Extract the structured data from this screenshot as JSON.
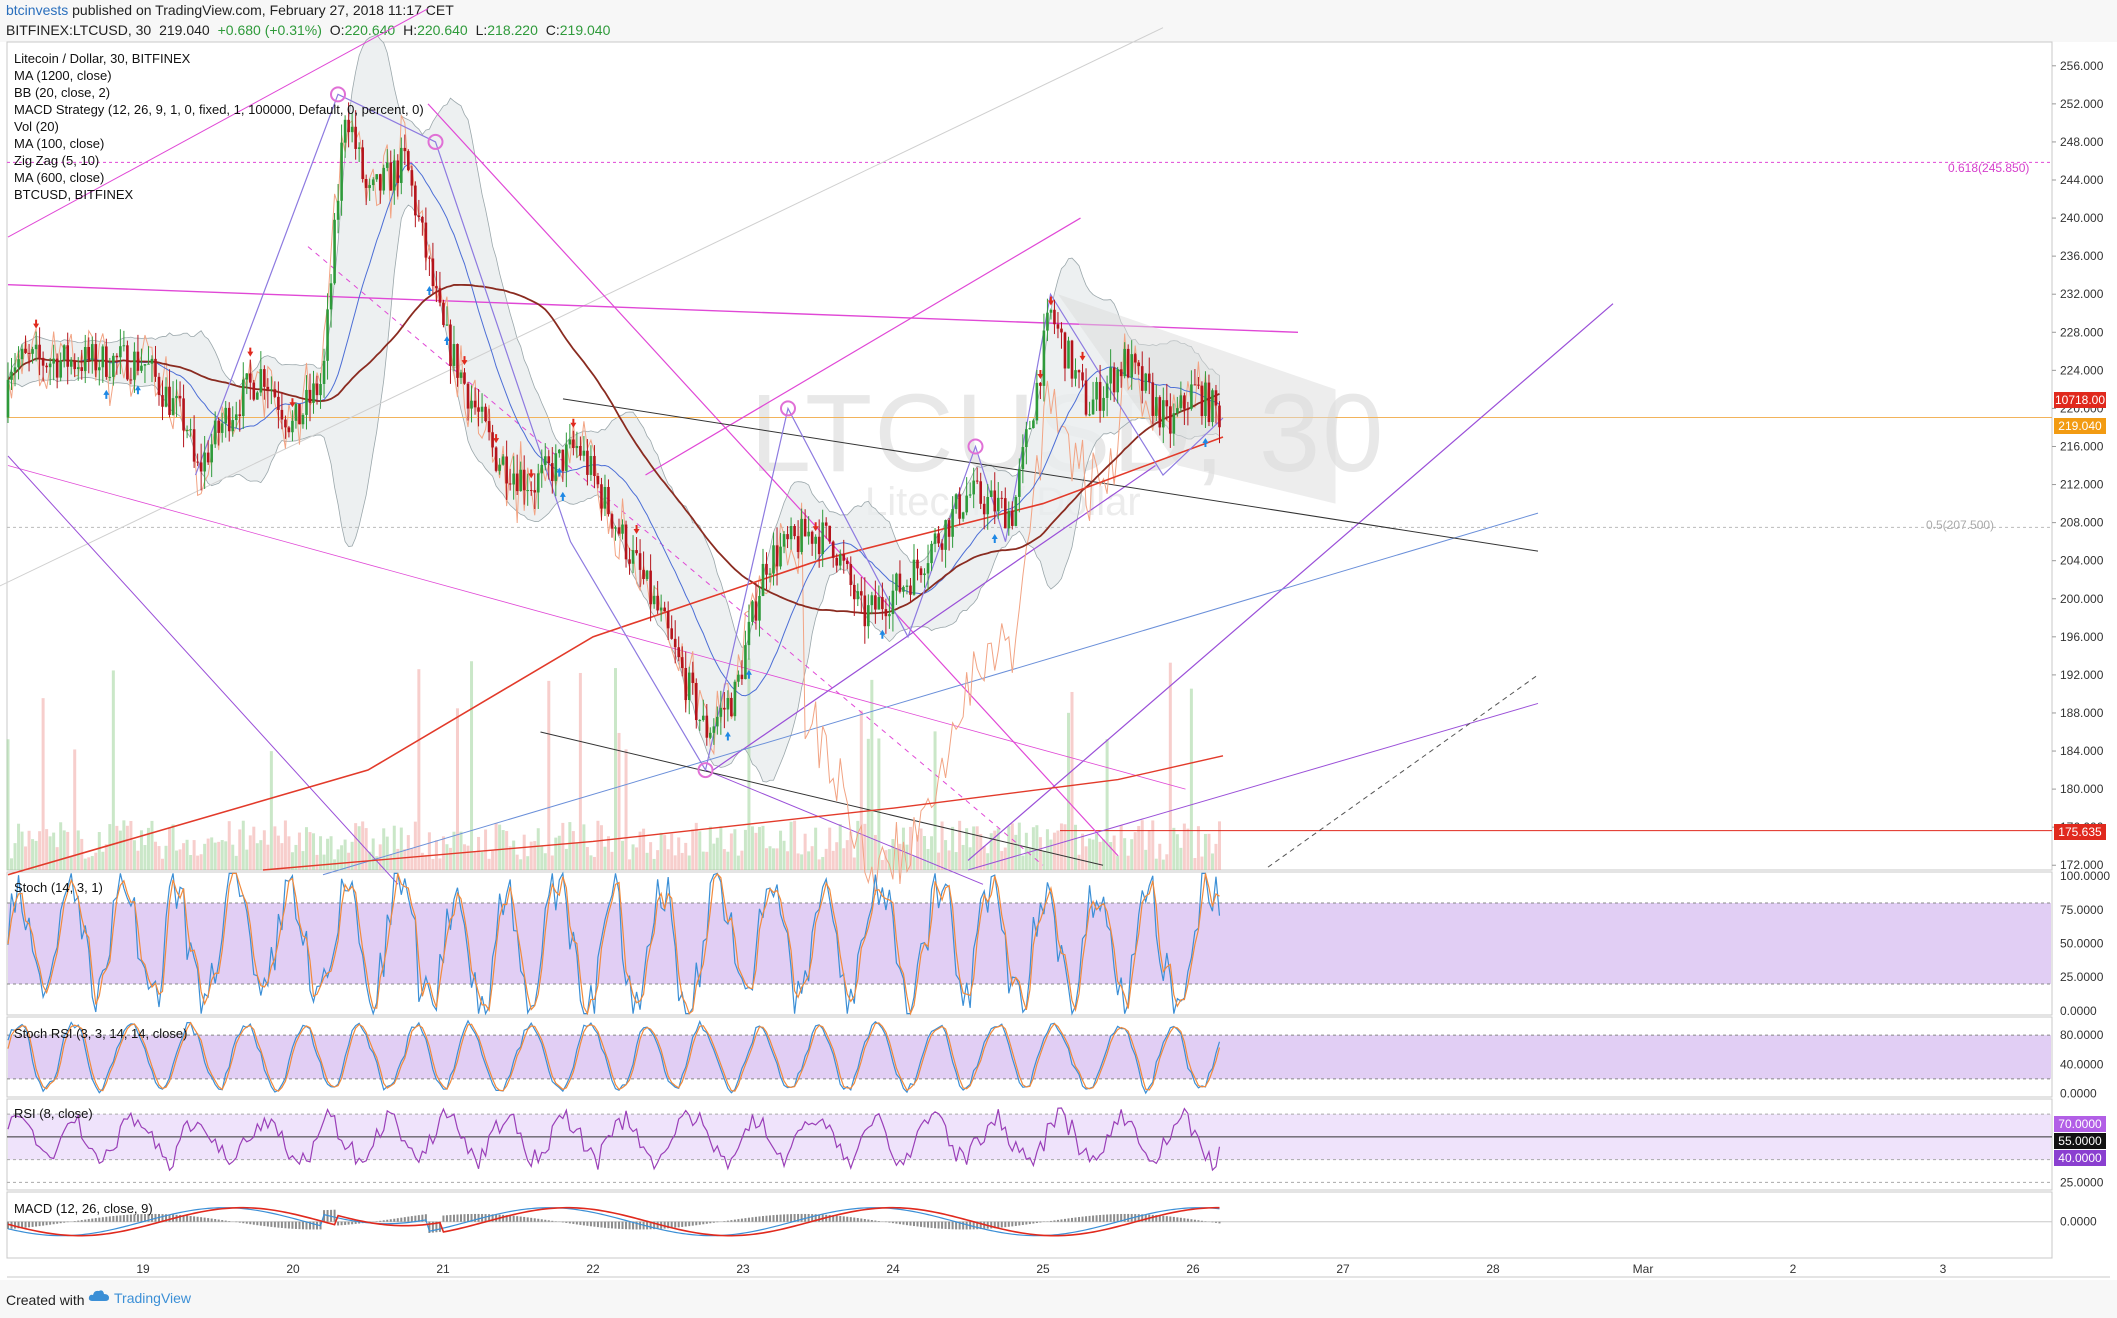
{
  "header": {
    "user": "btcinvests",
    "published_text": "published on TradingView.com, February 27, 2018 11:17 CET",
    "symbol": "BITFINEX:LTCUSD, 30",
    "last": "219.040",
    "change": "+0.680 (+0.31%)",
    "open_label": "O:",
    "open": "220.640",
    "high_label": "H:",
    "high": "220.640",
    "low_label": "L:",
    "low": "218.220",
    "close_label": "C:",
    "close": "219.040"
  },
  "legend": [
    "Litecoin / Dollar, 30, BITFINEX",
    "MA (1200, close)",
    "BB (20, close, 2)",
    "MACD Strategy (12, 26, 9, 1, 0, fixed, 1, 100000, Default, 0, percent, 0)",
    "Vol (20)",
    "MA (100, close)",
    "Zig Zag (5, 10)",
    "MA (600, close)",
    "BTCUSD, BITFINEX"
  ],
  "watermark": {
    "symbol": "LTCUSD, 30",
    "name": "Litecoin / Dollar"
  },
  "panels": {
    "stoch": "Stoch (14, 3, 1)",
    "stoch_rsi": "Stoch RSI (3, 3, 14, 14, close)",
    "rsi": "RSI (8, close)",
    "macd": "MACD (12, 26, close, 9)"
  },
  "price_tags": {
    "btc": "10718.00",
    "last": "219.040",
    "level": "175.635",
    "rsi_upper": "70.0000",
    "rsi_mid": "55.0000",
    "rsi_lower": "40.0000"
  },
  "fib_labels": {
    "fib618": "0.618(245.850)",
    "fib5": "0.5(207.500)"
  },
  "footer": {
    "created_with": "Created with",
    "brand": "TradingView"
  },
  "colors": {
    "up": "#2e9a3a",
    "down": "#b5141c",
    "bb_fill": "#e8ecee",
    "pink_line": "#e048d6",
    "purple_line": "#9a4fd8",
    "ma100": "#8a2b20",
    "ma600": "#e23a2a",
    "btc_line": "#f2a484",
    "stoch_band": "#dcc6f2"
  },
  "chart_data": [
    {
      "type": "candlestick",
      "title": "Litecoin / Dollar, 30, BITFINEX",
      "x_ticks": [
        "19",
        "20",
        "21",
        "22",
        "23",
        "24",
        "25",
        "26",
        "27",
        "28",
        "Mar",
        "2",
        "3"
      ],
      "y_ticks": [
        "256.000",
        "252.000",
        "248.000",
        "244.000",
        "240.000",
        "236.000",
        "232.000",
        "228.000",
        "224.000",
        "220.000",
        "216.000",
        "212.000",
        "208.000",
        "204.000",
        "200.000",
        "196.000",
        "192.000",
        "188.000",
        "184.000",
        "180.000",
        "176.000",
        "172.000"
      ],
      "ylim": [
        171.5,
        258.5
      ],
      "close_path": [
        {
          "x": 0.0,
          "y": 225
        },
        {
          "x": 0.3,
          "y": 218
        },
        {
          "x": 0.35,
          "y": 213
        },
        {
          "x": 0.55,
          "y": 219
        },
        {
          "x": 0.8,
          "y": 224
        },
        {
          "x": 1.0,
          "y": 218
        },
        {
          "x": 1.2,
          "y": 223
        },
        {
          "x": 1.35,
          "y": 252
        },
        {
          "x": 1.5,
          "y": 242
        },
        {
          "x": 1.75,
          "y": 246
        },
        {
          "x": 2.0,
          "y": 228
        },
        {
          "x": 2.35,
          "y": 215
        },
        {
          "x": 2.6,
          "y": 212
        },
        {
          "x": 2.9,
          "y": 216
        },
        {
          "x": 3.15,
          "y": 208
        },
        {
          "x": 3.45,
          "y": 198
        },
        {
          "x": 3.75,
          "y": 186
        },
        {
          "x": 3.95,
          "y": 190
        },
        {
          "x": 4.15,
          "y": 204
        },
        {
          "x": 4.45,
          "y": 207
        },
        {
          "x": 4.6,
          "y": 206
        },
        {
          "x": 4.8,
          "y": 198
        },
        {
          "x": 5.1,
          "y": 202
        },
        {
          "x": 5.5,
          "y": 211
        },
        {
          "x": 5.8,
          "y": 209
        },
        {
          "x": 6.05,
          "y": 230
        },
        {
          "x": 6.3,
          "y": 220
        },
        {
          "x": 6.55,
          "y": 225
        },
        {
          "x": 6.85,
          "y": 218
        },
        {
          "x": 7.0,
          "y": 222
        },
        {
          "x": 7.2,
          "y": 219.04
        }
      ],
      "zigzag": [
        {
          "x": 0.35,
          "y": 213
        },
        {
          "x": 1.3,
          "y": 253
        },
        {
          "x": 1.95,
          "y": 248
        },
        {
          "x": 2.85,
          "y": 206
        },
        {
          "x": 3.75,
          "y": 182
        },
        {
          "x": 4.3,
          "y": 220
        },
        {
          "x": 5.1,
          "y": 196
        },
        {
          "x": 5.55,
          "y": 216
        },
        {
          "x": 5.75,
          "y": 206
        },
        {
          "x": 6.05,
          "y": 232
        },
        {
          "x": 6.8,
          "y": 213
        },
        {
          "x": 7.2,
          "y": 219
        }
      ],
      "levels": {
        "fib618": 245.85,
        "fib5": 207.5,
        "horizontal": 175.635,
        "last": 219.04
      }
    },
    {
      "type": "line",
      "title": "Stoch (14, 3, 1)",
      "y_ticks": [
        "100.0000",
        "75.0000",
        "50.0000",
        "25.0000",
        "0.0000"
      ],
      "band": [
        20,
        80
      ]
    },
    {
      "type": "line",
      "title": "Stoch RSI (3, 3, 14, 14, close)",
      "y_ticks": [
        "80.0000",
        "40.0000",
        "0.0000"
      ],
      "band": [
        20,
        80
      ]
    },
    {
      "type": "line",
      "title": "RSI (8, close)",
      "y_ticks": [
        "70.0000",
        "55.0000",
        "40.0000",
        "25.0000"
      ],
      "band": [
        40,
        70
      ]
    },
    {
      "type": "line",
      "title": "MACD (12, 26, close, 9)",
      "y_ticks": [
        "0.0000"
      ]
    }
  ]
}
